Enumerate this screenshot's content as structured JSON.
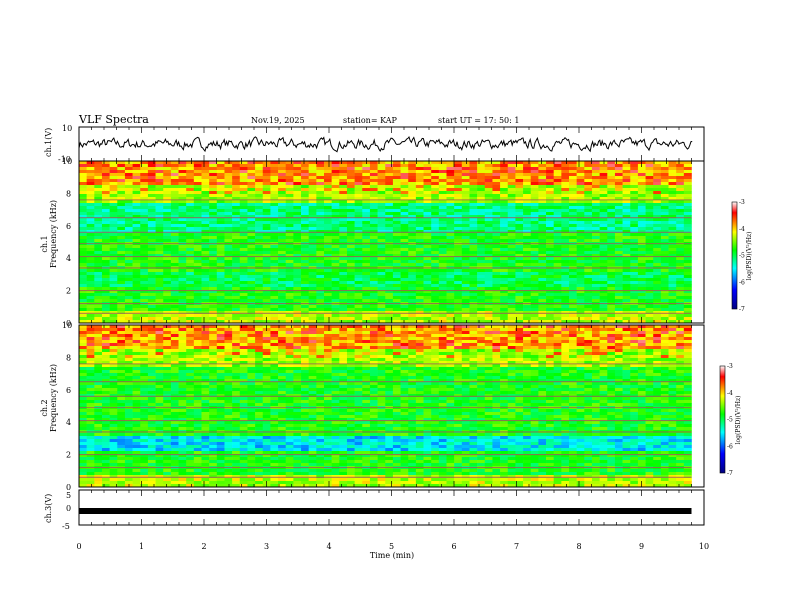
{
  "header": {
    "title": "VLF Spectra",
    "date": "Nov.19, 2025",
    "station": "station= KAP",
    "start_time": "start  UT =   17: 50: 1"
  },
  "chart_data": [
    {
      "type": "line",
      "name": "waveform-ch1",
      "ylabel": "ch.1(V)",
      "ylim": [
        -10,
        10
      ],
      "ytick_labels": [
        "10",
        "-10"
      ],
      "xlim": [
        0,
        10
      ],
      "baseline": 0,
      "amplitude": 3
    },
    {
      "type": "heatmap",
      "name": "spectrogram-ch1",
      "ylabel_channel": "ch.1",
      "ylabel": "Frequency (kHz)",
      "ylim": [
        0,
        10
      ],
      "yticks": [
        0,
        2,
        4,
        6,
        8,
        10
      ],
      "xlim": [
        0,
        9.8
      ],
      "colorbar": {
        "label": "log(PSD)(V²/Hz)",
        "range": [
          -7,
          -3
        ],
        "ticks": [
          "-3",
          "-4",
          "-5",
          "-6",
          "-7"
        ],
        "colors": [
          "#000080",
          "#0000ff",
          "#00ffff",
          "#00ff00",
          "#ffff00",
          "#ff0000",
          "#ffffff"
        ]
      }
    },
    {
      "type": "heatmap",
      "name": "spectrogram-ch2",
      "ylabel_channel": "ch.2",
      "ylabel": "Frequency (kHz)",
      "ylim": [
        0,
        10
      ],
      "yticks": [
        0,
        2,
        4,
        6,
        8,
        10
      ],
      "xlim": [
        0,
        9.8
      ],
      "colorbar": {
        "label": "log(PSD)(V²/Hz)",
        "range": [
          -7,
          -3
        ],
        "ticks": [
          "-3",
          "-4",
          "-5",
          "-6",
          "-7"
        ],
        "colors": [
          "#000080",
          "#0000ff",
          "#00ffff",
          "#00ff00",
          "#ffff00",
          "#ff0000",
          "#ffffff"
        ]
      }
    },
    {
      "type": "line",
      "name": "waveform-ch3",
      "ylabel": "ch.3(V)",
      "ylim": [
        -5,
        5
      ],
      "ytick_labels": [
        "5",
        "0",
        "-5"
      ],
      "xlim": [
        0,
        10
      ],
      "level": -1,
      "xlabel": "Time  (min)",
      "xticks": [
        0,
        1,
        2,
        3,
        4,
        5,
        6,
        7,
        8,
        9,
        10
      ],
      "xtick_labels": [
        "0",
        "1",
        "2",
        "3",
        "4",
        "5",
        "6",
        "7",
        "8",
        "9",
        "10"
      ]
    }
  ]
}
